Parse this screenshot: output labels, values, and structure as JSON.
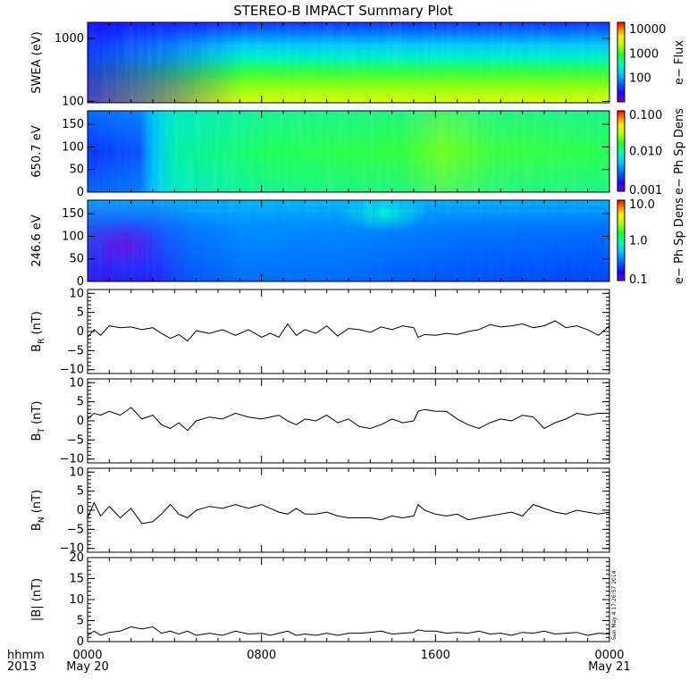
{
  "title": "STEREO-B IMPACT Summary Plot",
  "time_axis": {
    "row1_label": "hhmm",
    "row2_label": "2013",
    "ticks": [
      {
        "hhmm": "0000",
        "date": "May 20",
        "hour": 0
      },
      {
        "hhmm": "0800",
        "date": "",
        "hour": 8
      },
      {
        "hhmm": "1600",
        "date": "",
        "hour": 16
      },
      {
        "hhmm": "0000",
        "date": "May 21",
        "hour": 24
      }
    ]
  },
  "colors": {
    "frame": "#000000",
    "line": "#000000",
    "spectrum": [
      "#7a00d6",
      "#2200ff",
      "#0060ff",
      "#00c8ff",
      "#00ffb0",
      "#22ff22",
      "#b8ff00",
      "#ffee00",
      "#ff8800",
      "#ff0000"
    ]
  },
  "timestamp": "Sun May  4 17:26:57 2014",
  "chart_data": [
    {
      "type": "heatmap",
      "ylabel": "SWEA (eV)",
      "yscale": "log",
      "ylim": [
        95,
        1800
      ],
      "yticks": [
        {
          "value": 1000,
          "label": "1000"
        },
        {
          "value": 100,
          "label": "100"
        }
      ],
      "colorbar": {
        "label": "e− Flux",
        "scale": "log",
        "range": [
          10,
          20000
        ],
        "ticks": [
          {
            "value": 10000,
            "label": "10000"
          },
          {
            "value": 1000,
            "label": "1000"
          },
          {
            "value": 100,
            "label": "100"
          }
        ]
      },
      "description_values": {
        "low_energy_flux_approx": 6000,
        "mid_energy_flux_approx": 1000,
        "high_energy_flux_approx": 40
      }
    },
    {
      "type": "heatmap",
      "ylabel": "650.7 eV",
      "ylim": [
        0,
        180
      ],
      "yticks": [
        {
          "value": 150,
          "label": "150"
        },
        {
          "value": 100,
          "label": "100"
        },
        {
          "value": 50,
          "label": "50"
        },
        {
          "value": 0,
          "label": "0"
        }
      ],
      "colorbar": {
        "label": "e− Ph Sp Dens",
        "scale": "log",
        "range": [
          0.001,
          0.1
        ],
        "ticks": [
          {
            "value": 0.1,
            "label": "0.100"
          },
          {
            "value": 0.01,
            "label": "0.010"
          },
          {
            "value": 0.001,
            "label": "0.001"
          }
        ]
      },
      "description_values": {
        "before_0300_approx": 0.002,
        "after_0300_approx": 0.02,
        "peak_near_1600_approx": 0.04
      }
    },
    {
      "type": "heatmap",
      "ylabel": "246.6 eV",
      "ylim": [
        0,
        180
      ],
      "yticks": [
        {
          "value": 150,
          "label": "150"
        },
        {
          "value": 100,
          "label": "100"
        },
        {
          "value": 50,
          "label": "50"
        },
        {
          "value": 0,
          "label": "0"
        }
      ],
      "colorbar": {
        "label": "e− Ph Sp Dens",
        "scale": "log",
        "range": [
          0.1,
          10
        ],
        "ticks": [
          {
            "value": 10,
            "label": "10.0"
          },
          {
            "value": 1,
            "label": "1.0"
          },
          {
            "value": 0.1,
            "label": "0.1"
          }
        ]
      },
      "description_values": {
        "before_0300_approx": 0.2,
        "mid_day_approx": 0.6,
        "high_pitch_1100_1400_approx": 2.5
      }
    },
    {
      "type": "line",
      "ylabel": "B",
      "ylabel_sub": "R",
      "ylabel_unit": " (nT)",
      "ylim": [
        -11,
        11
      ],
      "yticks": [
        {
          "value": 10,
          "label": "10"
        },
        {
          "value": 5,
          "label": "5"
        },
        {
          "value": 0,
          "label": "0"
        },
        {
          "value": -5,
          "label": "−5"
        },
        {
          "value": -10,
          "label": "−10"
        }
      ],
      "x_hours": [
        0,
        0.3,
        0.6,
        1.0,
        1.5,
        2.0,
        2.5,
        3.0,
        3.4,
        3.8,
        4.2,
        4.6,
        5.0,
        5.6,
        6.2,
        6.8,
        7.4,
        8.0,
        8.4,
        8.8,
        9.2,
        9.6,
        10.0,
        10.5,
        11.0,
        11.5,
        12.0,
        12.5,
        13.0,
        13.5,
        14.0,
        14.5,
        15.0,
        15.2,
        15.5,
        16.0,
        16.5,
        17.0,
        17.5,
        18.0,
        18.5,
        19.0,
        19.5,
        20.0,
        20.5,
        21.0,
        21.5,
        22.0,
        22.5,
        23.0,
        23.5,
        24.0
      ],
      "values": [
        -1.5,
        0.5,
        -1.0,
        1.5,
        1.0,
        1.2,
        0.5,
        1.0,
        -0.5,
        -1.8,
        -0.8,
        -2.5,
        0.2,
        -0.5,
        0.5,
        -1.0,
        0.5,
        -1.5,
        -0.5,
        -1.5,
        2.0,
        -1.0,
        0.5,
        -0.5,
        1.5,
        -1.2,
        0.8,
        0.5,
        -0.2,
        1.2,
        0.5,
        1.5,
        1.0,
        -1.5,
        -0.8,
        -1.0,
        -0.5,
        -0.8,
        0.0,
        0.5,
        1.8,
        1.2,
        1.5,
        2.0,
        1.0,
        1.5,
        2.8,
        1.0,
        1.5,
        0.5,
        -1.0,
        1.5
      ]
    },
    {
      "type": "line",
      "ylabel": "B",
      "ylabel_sub": "T",
      "ylabel_unit": " (nT)",
      "ylim": [
        -11,
        11
      ],
      "yticks": [
        {
          "value": 10,
          "label": "10"
        },
        {
          "value": 5,
          "label": "5"
        },
        {
          "value": 0,
          "label": "0"
        },
        {
          "value": -5,
          "label": "−5"
        },
        {
          "value": -10,
          "label": "−10"
        }
      ],
      "x_hours": [
        0,
        0.3,
        0.6,
        1.0,
        1.5,
        2.0,
        2.5,
        3.0,
        3.4,
        3.8,
        4.2,
        4.6,
        5.0,
        5.6,
        6.2,
        6.8,
        7.4,
        8.0,
        8.4,
        8.8,
        9.2,
        9.6,
        10.0,
        10.5,
        11.0,
        11.5,
        12.0,
        12.5,
        13.0,
        13.5,
        14.0,
        14.5,
        15.0,
        15.2,
        15.5,
        16.0,
        16.5,
        17.0,
        17.5,
        18.0,
        18.5,
        19.0,
        19.5,
        20.0,
        20.5,
        21.0,
        21.5,
        22.0,
        22.5,
        23.0,
        23.5,
        24.0
      ],
      "values": [
        0.5,
        2.0,
        1.5,
        2.5,
        1.5,
        3.5,
        0.5,
        1.5,
        -1.0,
        -2.0,
        -0.5,
        -2.5,
        0.0,
        1.0,
        0.5,
        2.0,
        1.0,
        0.5,
        1.0,
        1.5,
        0.0,
        -1.0,
        0.5,
        0.0,
        1.5,
        -0.5,
        0.5,
        -1.5,
        -2.0,
        -1.0,
        0.5,
        -0.5,
        0.0,
        2.5,
        3.0,
        2.5,
        2.5,
        0.5,
        -1.0,
        -2.0,
        -0.5,
        0.5,
        0.0,
        1.5,
        1.0,
        -2.0,
        -0.5,
        0.5,
        2.0,
        1.5,
        2.0,
        2.0
      ]
    },
    {
      "type": "line",
      "ylabel": "B",
      "ylabel_sub": "N",
      "ylabel_unit": " (nT)",
      "ylim": [
        -11,
        11
      ],
      "yticks": [
        {
          "value": 10,
          "label": "10"
        },
        {
          "value": 5,
          "label": "5"
        },
        {
          "value": 0,
          "label": "0"
        },
        {
          "value": -5,
          "label": "−5"
        },
        {
          "value": -10,
          "label": "−10"
        }
      ],
      "x_hours": [
        0,
        0.3,
        0.6,
        1.0,
        1.5,
        2.0,
        2.5,
        3.0,
        3.4,
        3.8,
        4.2,
        4.6,
        5.0,
        5.6,
        6.2,
        6.8,
        7.4,
        8.0,
        8.4,
        8.8,
        9.2,
        9.6,
        10.0,
        10.5,
        11.0,
        11.5,
        12.0,
        12.5,
        13.0,
        13.5,
        14.0,
        14.5,
        15.0,
        15.2,
        15.5,
        16.0,
        16.5,
        17.0,
        17.5,
        18.0,
        18.5,
        19.0,
        19.5,
        20.0,
        20.5,
        21.0,
        21.5,
        22.0,
        22.5,
        23.0,
        23.5,
        24.0
      ],
      "values": [
        -2.0,
        2.0,
        -1.5,
        1.0,
        -2.0,
        0.5,
        -3.5,
        -3.0,
        -1.0,
        1.5,
        -1.0,
        -2.0,
        0.0,
        1.0,
        0.5,
        1.5,
        0.5,
        1.5,
        0.5,
        -0.5,
        -1.0,
        0.5,
        -1.0,
        -1.0,
        -0.5,
        -1.5,
        -2.0,
        -2.0,
        -2.0,
        -2.5,
        -1.5,
        -2.0,
        -1.5,
        1.5,
        0.0,
        -1.0,
        -1.5,
        -1.0,
        -2.5,
        -2.0,
        -1.5,
        -1.0,
        -0.5,
        -1.5,
        1.5,
        0.5,
        -0.5,
        -1.0,
        0.0,
        -0.5,
        -1.0,
        -0.5
      ]
    },
    {
      "type": "line",
      "ylabel": "|B| (nT)",
      "ylim": [
        0,
        20
      ],
      "yticks": [
        {
          "value": 20,
          "label": "20"
        },
        {
          "value": 15,
          "label": "15"
        },
        {
          "value": 10,
          "label": "10"
        },
        {
          "value": 5,
          "label": "5"
        },
        {
          "value": 0,
          "label": "0"
        }
      ],
      "x_hours": [
        0,
        0.3,
        0.6,
        1.0,
        1.5,
        2.0,
        2.5,
        3.0,
        3.4,
        3.8,
        4.2,
        4.6,
        5.0,
        5.6,
        6.2,
        6.8,
        7.4,
        8.0,
        8.4,
        8.8,
        9.2,
        9.6,
        10.0,
        10.5,
        11.0,
        11.5,
        12.0,
        12.5,
        13.0,
        13.5,
        14.0,
        14.5,
        15.0,
        15.2,
        15.5,
        16.0,
        16.5,
        17.0,
        17.5,
        18.0,
        18.5,
        19.0,
        19.5,
        20.0,
        20.5,
        21.0,
        21.5,
        22.0,
        22.5,
        23.0,
        23.5,
        24.0
      ],
      "values": [
        1.5,
        2.5,
        1.5,
        2.2,
        2.5,
        3.5,
        3.0,
        3.5,
        2.0,
        2.5,
        1.8,
        2.5,
        1.5,
        2.0,
        1.5,
        2.5,
        1.8,
        2.0,
        1.5,
        2.0,
        2.5,
        1.5,
        1.8,
        1.5,
        2.0,
        1.5,
        2.0,
        2.0,
        2.2,
        2.5,
        1.8,
        2.0,
        2.2,
        2.8,
        2.5,
        2.5,
        2.0,
        2.2,
        2.0,
        2.5,
        1.8,
        2.0,
        1.5,
        2.2,
        2.0,
        2.5,
        1.8,
        2.0,
        2.2,
        1.5,
        2.0,
        1.8
      ]
    }
  ]
}
